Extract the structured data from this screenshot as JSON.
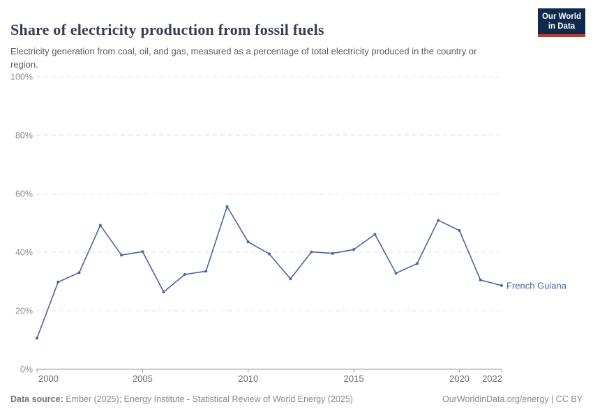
{
  "header": {
    "title": "Share of electricity production from fossil fuels",
    "subtitle": "Electricity generation from coal, oil, and gas, measured as a percentage of total electricity produced in the country or region."
  },
  "logo": {
    "line1": "Our World",
    "line2": "in Data",
    "bg_color": "#102a4e",
    "bar_color": "#c0392b"
  },
  "chart_data": {
    "type": "line",
    "title": "Share of electricity production from fossil fuels",
    "x": [
      2000,
      2001,
      2002,
      2003,
      2004,
      2005,
      2006,
      2007,
      2008,
      2009,
      2010,
      2011,
      2012,
      2013,
      2014,
      2015,
      2016,
      2017,
      2018,
      2019,
      2020,
      2021,
      2022
    ],
    "series": [
      {
        "name": "French Guiana",
        "color": "#4665A2",
        "values": [
          10.6,
          29.8,
          33.0,
          49.2,
          39.0,
          40.2,
          26.4,
          32.4,
          33.5,
          55.6,
          43.5,
          39.4,
          30.9,
          40.1,
          39.6,
          40.9,
          46.1,
          32.8,
          36.1,
          50.9,
          47.4,
          30.5,
          28.6
        ]
      }
    ],
    "xlabel": "",
    "ylabel": "",
    "xlim": [
      2000,
      2022
    ],
    "ylim": [
      0,
      100
    ],
    "x_ticks": [
      2000,
      2005,
      2010,
      2015,
      2020,
      2022
    ],
    "y_ticks": [
      0,
      20,
      40,
      60,
      80,
      100
    ],
    "y_tick_suffix": "%",
    "grid": "dashed-horizontal",
    "legend": "end-of-line-label",
    "colors": {
      "grid": "#e0e0e0",
      "axis": "#9c9c9c",
      "y_tick_text": "#8c8c8c",
      "x_tick_text": "#6d6d6d"
    }
  },
  "footer": {
    "source_label": "Data source:",
    "source_text": " Ember (2025); Energy Institute - Statistical Review of World Energy (2025)",
    "rights": "OurWorldinData.org/energy | CC BY"
  }
}
